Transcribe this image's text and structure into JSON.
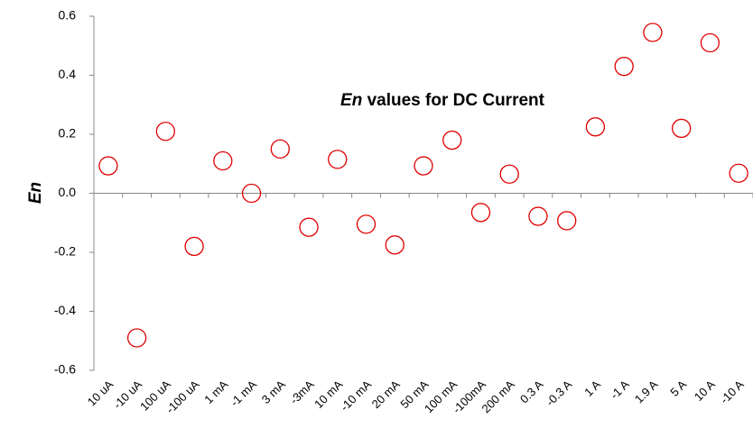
{
  "chart_data": {
    "type": "scatter",
    "title": {
      "italic": "En",
      "text": "values for DC Current"
    },
    "y_label": "En",
    "categories": [
      "10 uA",
      "-10 uA",
      "100 uA",
      "-100 uA",
      "1 mA",
      "-1 mA",
      "3 mA",
      "-3mA",
      "10 mA",
      "-10 mA",
      "20 mA",
      "50 mA",
      "100 mA",
      "-100mA",
      "200 mA",
      "0.3 A",
      "-0.3 A",
      "1 A",
      "-1 A",
      "1.9 A",
      "5 A",
      "10 A",
      "-10 A"
    ],
    "values": [
      0.093,
      -0.49,
      0.21,
      -0.18,
      0.11,
      0.0,
      0.15,
      -0.115,
      0.115,
      -0.105,
      -0.175,
      0.093,
      0.18,
      -0.065,
      0.065,
      -0.078,
      -0.093,
      0.225,
      0.43,
      0.545,
      0.22,
      0.51,
      0.068
    ],
    "color": "#e00000",
    "ylim": [
      -0.6,
      0.6
    ],
    "yticks": [
      -0.6,
      -0.4,
      -0.2,
      {
        "value": 0,
        "label": "0.0"
      },
      0.2,
      0.4,
      0.6
    ],
    "grid": false
  }
}
